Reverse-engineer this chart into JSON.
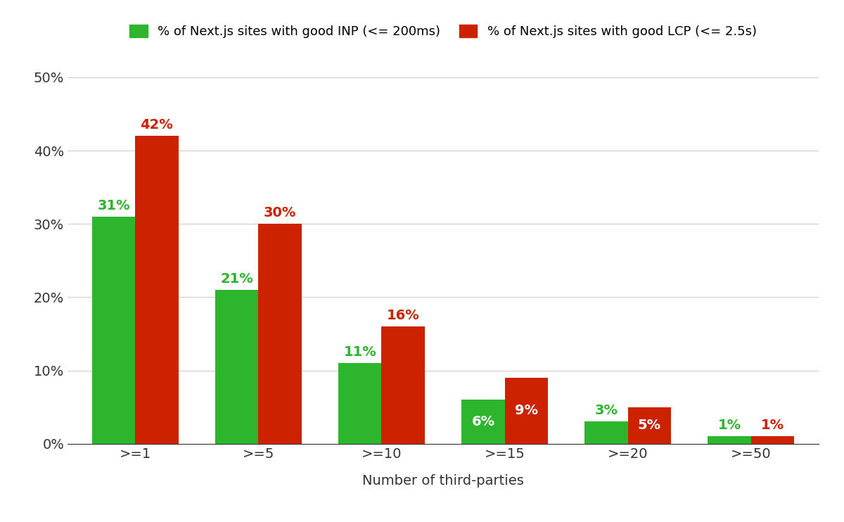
{
  "categories": [
    ">=1",
    ">=5",
    ">=10",
    ">=15",
    ">=20",
    ">=50"
  ],
  "inp_values": [
    31,
    21,
    11,
    6,
    3,
    1
  ],
  "lcp_values": [
    42,
    30,
    16,
    9,
    5,
    1
  ],
  "inp_color": "#2db52d",
  "lcp_color": "#cc2200",
  "inp_label": "% of Next.js sites with good INP (<= 200ms)",
  "lcp_label": "% of Next.js sites with good LCP (<= 2.5s)",
  "xlabel": "Number of third-parties",
  "ylim": [
    0,
    52
  ],
  "yticks": [
    0,
    10,
    20,
    30,
    40,
    50
  ],
  "background_color": "#ffffff",
  "grid_color": "#cccccc",
  "bar_width": 0.35,
  "label_fontsize": 14,
  "tick_fontsize": 14,
  "annotation_fontsize": 14,
  "legend_fontsize": 13,
  "annotations": {
    "inp": [
      {
        "value": 31,
        "position": "above",
        "color": "#2db52d"
      },
      {
        "value": 21,
        "position": "above",
        "color": "#2db52d"
      },
      {
        "value": 11,
        "position": "above",
        "color": "#2db52d"
      },
      {
        "value": 6,
        "position": "inside",
        "color": "white"
      },
      {
        "value": 3,
        "position": "above",
        "color": "#2db52d"
      },
      {
        "value": 1,
        "position": "above",
        "color": "#2db52d"
      }
    ],
    "lcp": [
      {
        "value": 42,
        "position": "above",
        "color": "#cc2200"
      },
      {
        "value": 30,
        "position": "above",
        "color": "#cc2200"
      },
      {
        "value": 16,
        "position": "above",
        "color": "#cc2200"
      },
      {
        "value": 9,
        "position": "inside",
        "color": "white"
      },
      {
        "value": 5,
        "position": "inside",
        "color": "white"
      },
      {
        "value": 1,
        "position": "above",
        "color": "#cc2200"
      }
    ]
  }
}
